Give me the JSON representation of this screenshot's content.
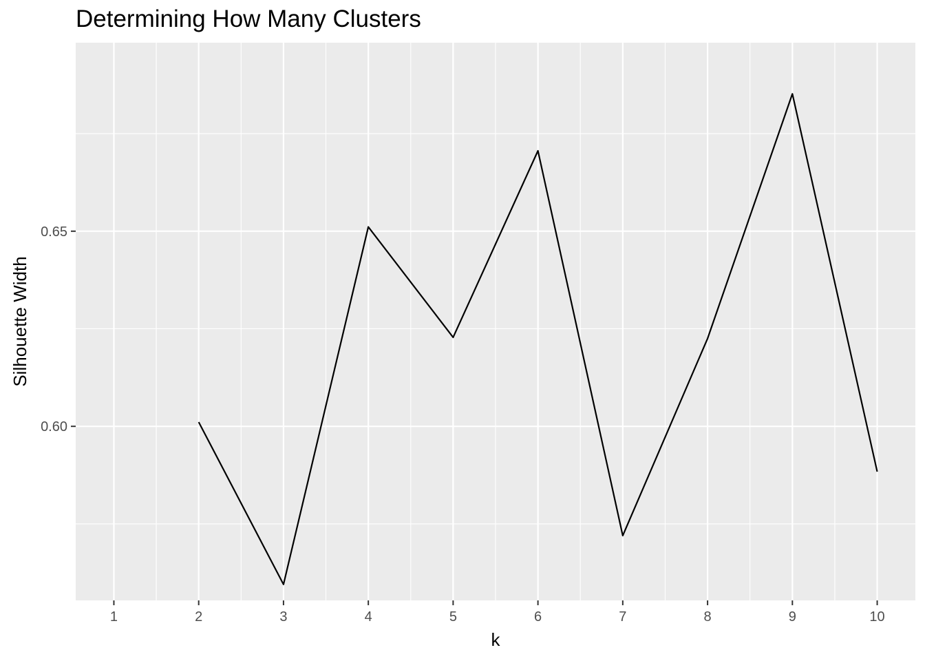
{
  "chart_data": {
    "type": "line",
    "title": "Determining How Many Clusters",
    "xlabel": "k",
    "ylabel": "Silhouette Width",
    "x": [
      1,
      2,
      3,
      4,
      5,
      6,
      7,
      8,
      9,
      10
    ],
    "x_ticks": [
      "1",
      "2",
      "3",
      "4",
      "5",
      "6",
      "7",
      "8",
      "9",
      "10"
    ],
    "y_ticks": [
      0.6,
      0.65
    ],
    "y_tick_labels": [
      "0.60",
      "0.65"
    ],
    "xlim": [
      0.55,
      10.45
    ],
    "ylim": [
      0.5554,
      0.6983
    ],
    "series": [
      {
        "values": [
          null,
          0.6011,
          0.5595,
          0.6511,
          0.6228,
          0.6706,
          0.572,
          0.6225,
          0.6852,
          0.5884
        ]
      }
    ],
    "grid": true,
    "colors": {
      "panel": "#ebebeb",
      "grid": "#ffffff",
      "line": "#000000",
      "tick_text": "#4d4d4d"
    }
  }
}
